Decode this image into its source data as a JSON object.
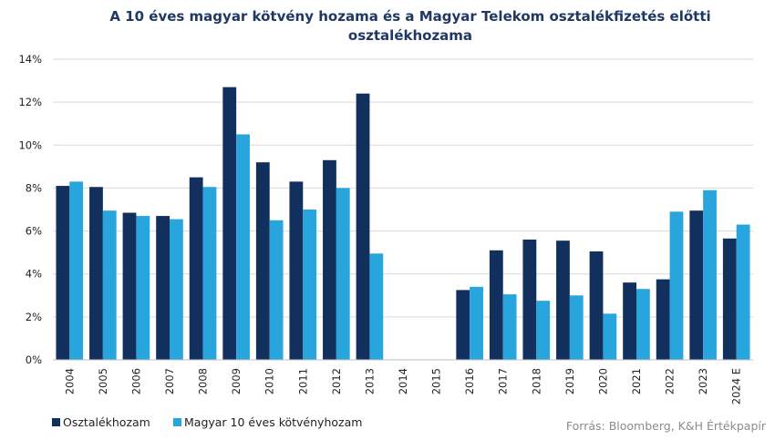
{
  "chart_data": {
    "type": "bar",
    "title_lines": [
      "A 10 éves magyar kötvény hozama és a Magyar Telekom osztalékfizetés előtti",
      "osztalékhozama"
    ],
    "categories": [
      "2004",
      "2005",
      "2006",
      "2007",
      "2008",
      "2009",
      "2010",
      "2011",
      "2012",
      "2013",
      "2014",
      "2015",
      "2016",
      "2017",
      "2018",
      "2019",
      "2020",
      "2021",
      "2022",
      "2023",
      "2024 E"
    ],
    "series": [
      {
        "name": "Osztalékhozam",
        "color": "#12305e",
        "values": [
          8.1,
          8.05,
          6.85,
          6.7,
          8.5,
          12.7,
          9.2,
          8.3,
          9.3,
          12.4,
          null,
          null,
          3.25,
          5.1,
          5.6,
          5.55,
          5.05,
          3.6,
          3.75,
          6.95,
          5.65
        ]
      },
      {
        "name": "Magyar 10 éves kötvényhozam",
        "color": "#27a5dc",
        "values": [
          8.3,
          6.95,
          6.7,
          6.55,
          8.05,
          10.5,
          6.5,
          7.0,
          8.0,
          4.95,
          null,
          null,
          3.4,
          3.05,
          2.75,
          3.0,
          2.15,
          3.3,
          6.9,
          7.9,
          6.3
        ]
      }
    ],
    "ylim": [
      0,
      14
    ],
    "yticks": [
      0,
      2,
      4,
      6,
      8,
      10,
      12,
      14
    ],
    "y_tick_format": "percent",
    "grid": "horizontal",
    "legend_position": "bottom-left",
    "source": "Forrás: Bloomberg,  K&H Értékpapír"
  }
}
